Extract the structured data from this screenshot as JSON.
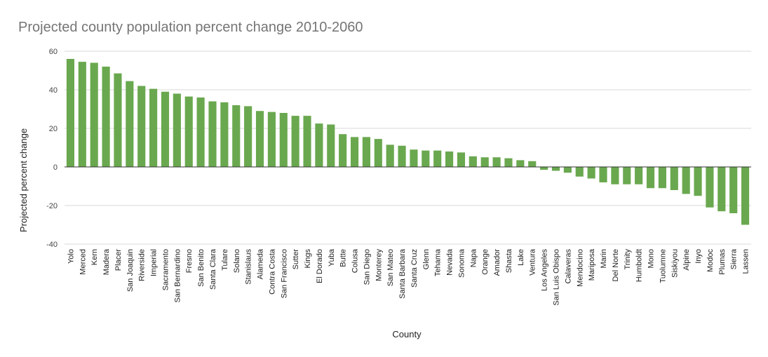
{
  "chart_data": {
    "type": "bar",
    "title": "Projected county population percent change 2010-2060",
    "xlabel": "County",
    "ylabel": "Projected percent change",
    "ylim": [
      -40,
      60
    ],
    "yticks": [
      60,
      40,
      20,
      0,
      -20,
      -40
    ],
    "grid": true,
    "legend": "none",
    "bar_color": "#6aa84f",
    "categories": [
      "Yolo",
      "Merced",
      "Kern",
      "Madera",
      "Placer",
      "San Joaquin",
      "Riverside",
      "Imperial",
      "Sacramento",
      "San Bernardino",
      "Fresno",
      "San Benito",
      "Santa Clara",
      "Tulare",
      "Solano",
      "Stanislaus",
      "Alameda",
      "Contra Costa",
      "San Francisco",
      "Sutter",
      "Kings",
      "El Dorado",
      "Yuba",
      "Butte",
      "Colusa",
      "San Diego",
      "Monterey",
      "San Mateo",
      "Santa Barbara",
      "Santa Cruz",
      "Glenn",
      "Tehama",
      "Nevada",
      "Sonoma",
      "Napa",
      "Orange",
      "Amador",
      "Shasta",
      "Lake",
      "Ventura",
      "Los Angeles",
      "San Luis Obispo",
      "Calaveras",
      "Mendocino",
      "Mariposa",
      "Marin",
      "Del Norte",
      "Trinity",
      "Humboldt",
      "Mono",
      "Tuolumne",
      "Siskiyou",
      "Alpine",
      "Inyo",
      "Modoc",
      "Plumas",
      "Sierra",
      "Lassen"
    ],
    "values": [
      56,
      54.5,
      54,
      52,
      48.5,
      44.5,
      42,
      40.5,
      39,
      38,
      36.5,
      36,
      34,
      33.5,
      32,
      31.5,
      29,
      28.5,
      28,
      26.5,
      26.5,
      22.5,
      22,
      17,
      15.5,
      15.5,
      14.5,
      11.5,
      11,
      9,
      8.5,
      8.5,
      8,
      7.5,
      5.5,
      5,
      5,
      4.5,
      3.5,
      3,
      -1.5,
      -2,
      -3,
      -5,
      -6,
      -8,
      -9,
      -9,
      -9,
      -11,
      -11,
      -12,
      -14,
      -15,
      -21,
      -23,
      -24,
      -30
    ]
  }
}
